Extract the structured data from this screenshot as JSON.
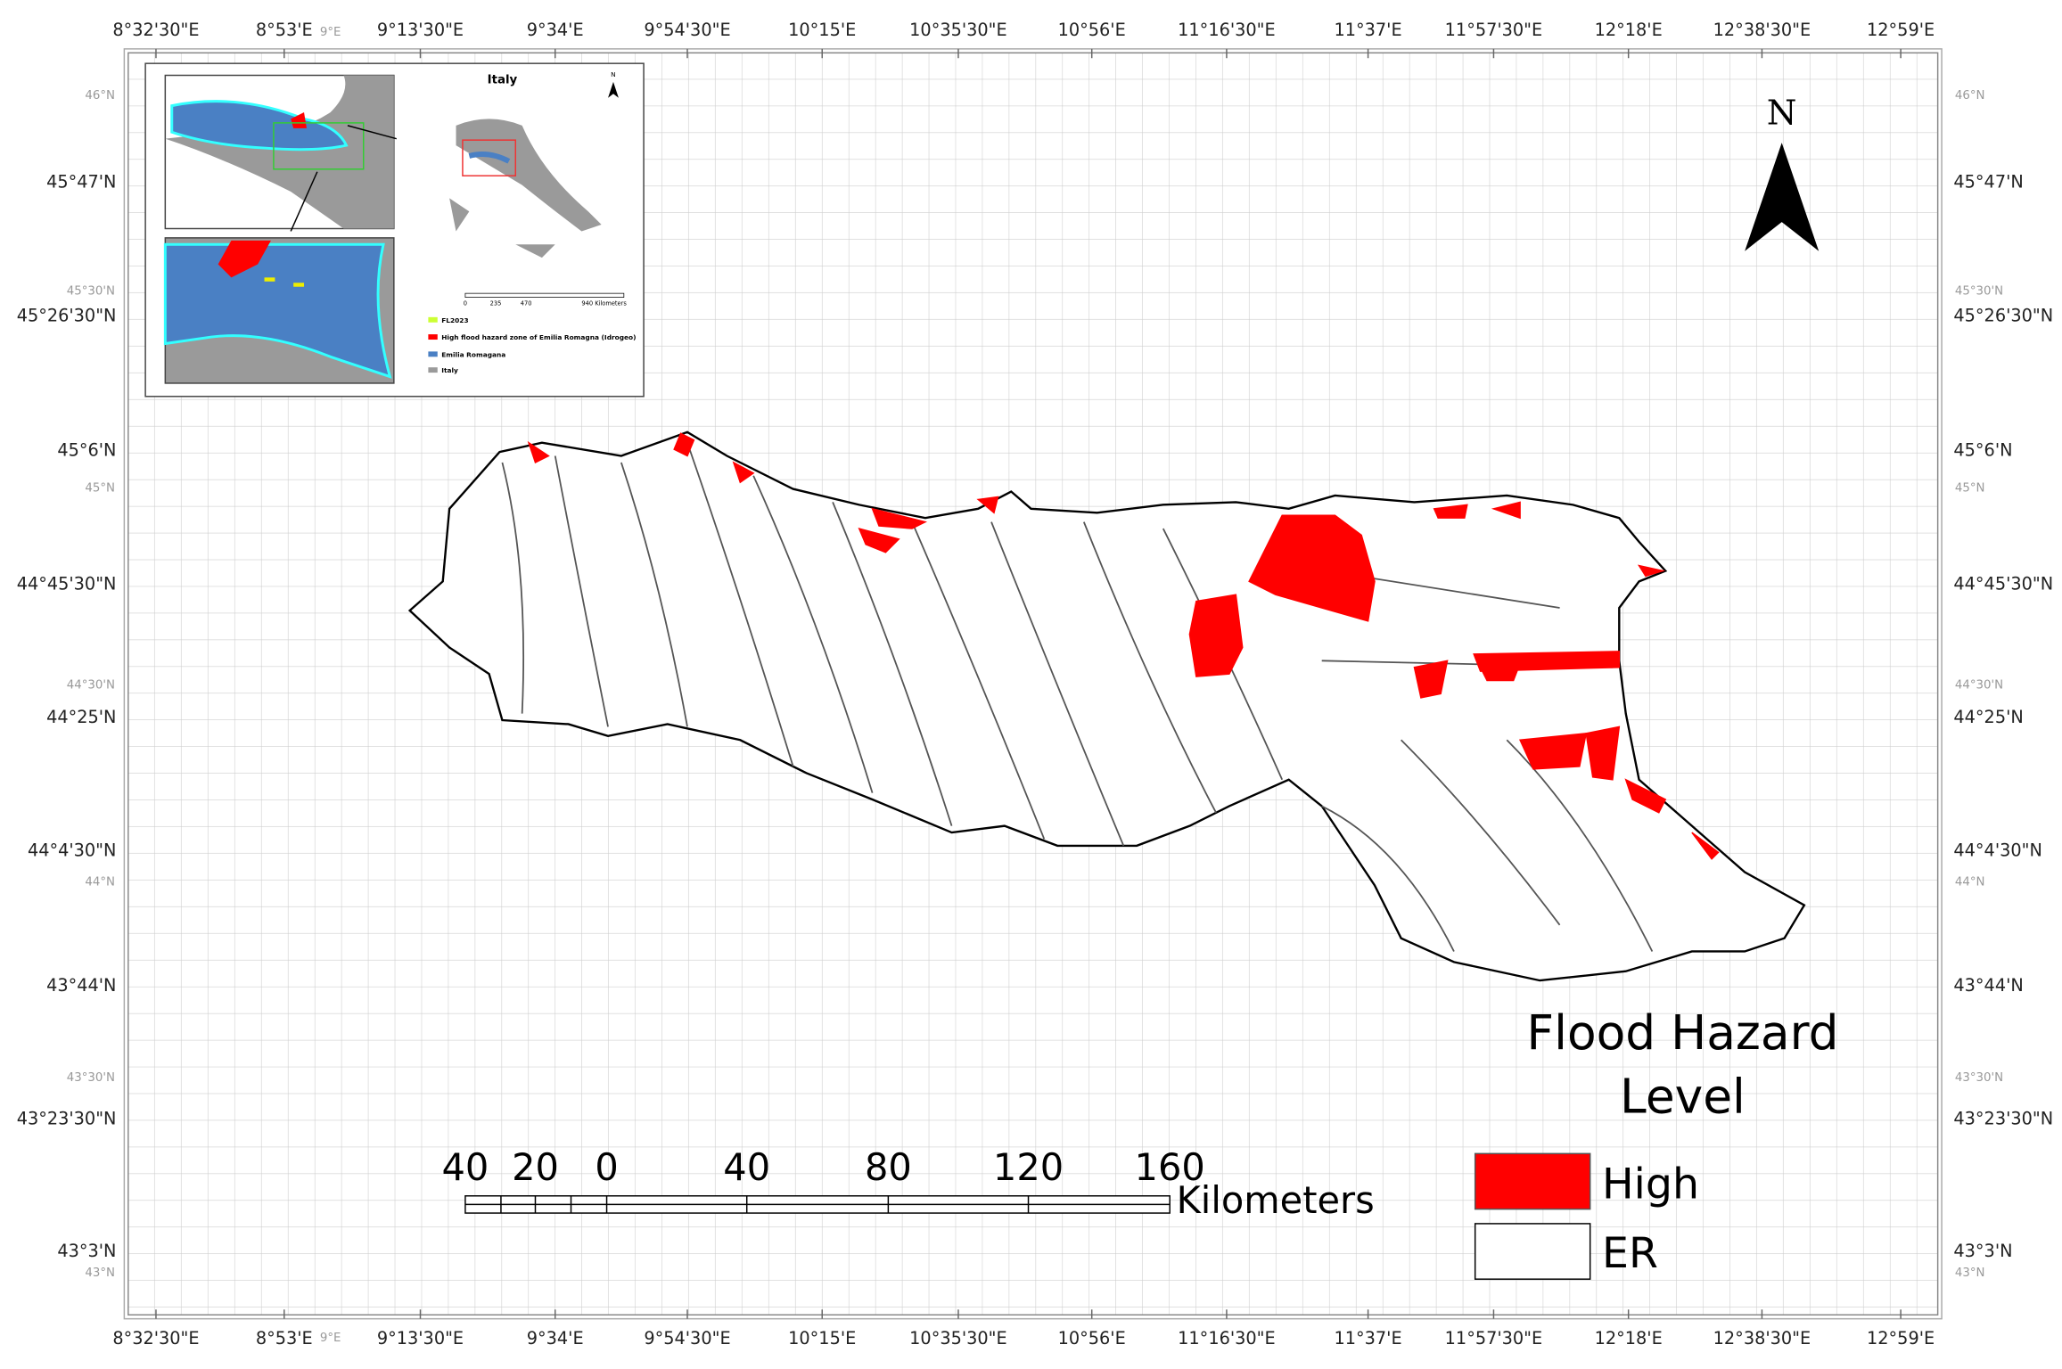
{
  "map": {
    "longitude_labels": [
      "8°32'30\"E",
      "8°53'E",
      "9°13'30\"E",
      "9°34'E",
      "9°54'30\"E",
      "10°15'E",
      "10°35'30\"E",
      "10°56'E",
      "11°16'30\"E",
      "11°37'E",
      "11°57'30\"E",
      "12°18'E",
      "12°38'30\"E",
      "12°59'E"
    ],
    "minor_longitude_labels": [
      "9°E"
    ],
    "latitude_labels": [
      "45°47'N",
      "45°26'30\"N",
      "45°6'N",
      "44°45'30\"N",
      "44°25'N",
      "44°4'30\"N",
      "43°44'N",
      "43°23'30\"N",
      "43°3'N"
    ],
    "minor_latitude_labels": [
      "46°N",
      "45°30'N",
      "45°N",
      "44°30'N",
      "44°N",
      "43°30'N",
      "43°N"
    ],
    "north": "N",
    "scale_bar": {
      "labels": [
        "40",
        "20",
        "0",
        "40",
        "80",
        "120",
        "160"
      ],
      "unit": "Kilometers"
    },
    "legend": {
      "title_lines": [
        "Flood Hazard",
        "Level"
      ],
      "items": [
        "High",
        "ER"
      ]
    },
    "inset": {
      "title": "Italy",
      "north": "N",
      "scale_labels": [
        "0",
        "235",
        "470",
        "940 Kilometers"
      ],
      "legend": [
        "FL2023",
        "High flood hazard zone of Emilia Romagna (Idrogeo)",
        "Emilia Romagana",
        "Italy"
      ]
    }
  }
}
